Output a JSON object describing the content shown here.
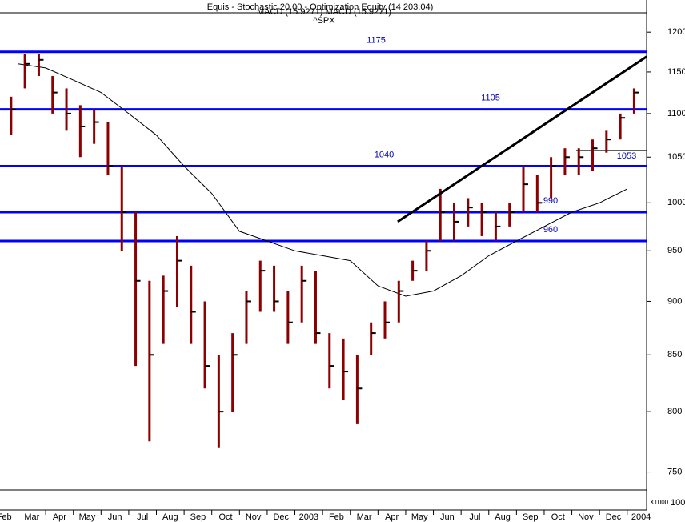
{
  "chart_data": {
    "type": "ohlc",
    "symbol": "^SPX",
    "header_lines": [
      "Equis - Stochastic 20.00 - Optimization Equity (14 203.04)",
      "MACD (15.9271) MACD (15.9271)"
    ],
    "x": [
      0.75,
      1.25,
      1.75,
      2.25,
      2.75,
      3.25,
      3.75,
      4.25,
      4.75,
      5.25,
      5.75,
      6.25,
      6.75,
      7.25,
      7.75,
      8.25,
      8.75,
      9.25,
      9.75,
      10.25,
      10.75,
      11.25,
      11.75,
      12.25,
      12.75,
      13.25,
      13.75,
      14.25,
      14.75,
      15.25,
      15.75,
      16.25,
      16.75,
      17.25,
      17.75,
      18.25,
      18.75,
      19.25,
      19.75,
      20.25,
      20.75,
      21.25,
      21.75,
      22.25,
      22.75,
      23.25
    ],
    "high": [
      1120,
      1172,
      1172,
      1145,
      1130,
      1110,
      1105,
      1090,
      1040,
      990,
      920,
      925,
      965,
      935,
      900,
      850,
      870,
      910,
      940,
      935,
      910,
      935,
      930,
      870,
      865,
      850,
      880,
      900,
      920,
      940,
      960,
      1015,
      1000,
      1005,
      1000,
      990,
      1000,
      1040,
      1030,
      1050,
      1060,
      1060,
      1070,
      1080,
      1100,
      1130
    ],
    "low": [
      1075,
      1130,
      1145,
      1100,
      1080,
      1050,
      1065,
      1030,
      950,
      840,
      775,
      860,
      895,
      860,
      820,
      770,
      800,
      860,
      890,
      890,
      860,
      880,
      860,
      820,
      810,
      790,
      850,
      865,
      880,
      920,
      930,
      960,
      960,
      975,
      965,
      960,
      975,
      990,
      990,
      1005,
      1030,
      1030,
      1035,
      1055,
      1070,
      1100
    ],
    "close": [
      1105,
      1160,
      1165,
      1125,
      1100,
      1085,
      1090,
      1040,
      990,
      920,
      850,
      910,
      940,
      890,
      840,
      800,
      850,
      900,
      930,
      900,
      880,
      920,
      870,
      840,
      835,
      820,
      870,
      880,
      910,
      930,
      950,
      990,
      980,
      995,
      990,
      975,
      990,
      1020,
      1000,
      1040,
      1050,
      1050,
      1060,
      1070,
      1095,
      1125
    ],
    "color": "#8b0000",
    "moving_average": {
      "color": "#000000",
      "x": [
        1,
        2,
        3,
        4,
        5,
        6,
        7,
        8,
        9,
        10,
        11,
        12,
        13,
        14,
        15,
        16,
        17,
        18,
        19,
        20,
        21,
        22,
        23
      ],
      "values": [
        1160,
        1155,
        1140,
        1125,
        1100,
        1075,
        1040,
        1010,
        970,
        960,
        950,
        945,
        940,
        915,
        905,
        910,
        925,
        945,
        960,
        975,
        990,
        1000,
        1015
      ]
    },
    "levels": [
      1175,
      1105,
      1040,
      990,
      960
    ],
    "level_color": "#0000ff",
    "marker_1053": 1053,
    "trendline": {
      "x": [
        14.71,
        23.7
      ],
      "values": [
        980,
        1169
      ],
      "color": "#000000"
    },
    "xlim": [
      0.35,
      23.7
    ],
    "xticks": [
      {
        "value": 0,
        "label": "Feb"
      },
      {
        "value": 1,
        "label": "Mar"
      },
      {
        "value": 2,
        "label": "Apr"
      },
      {
        "value": 3,
        "label": "May"
      },
      {
        "value": 4,
        "label": "Jun"
      },
      {
        "value": 5,
        "label": "Jul"
      },
      {
        "value": 6,
        "label": "Aug"
      },
      {
        "value": 7,
        "label": "Sep"
      },
      {
        "value": 8,
        "label": "Oct"
      },
      {
        "value": 9,
        "label": "Nov"
      },
      {
        "value": 10,
        "label": "Dec"
      },
      {
        "value": 11,
        "label": "2003"
      },
      {
        "value": 12,
        "label": "Feb"
      },
      {
        "value": 13,
        "label": "Mar"
      },
      {
        "value": 14,
        "label": "Apr"
      },
      {
        "value": 15,
        "label": "May"
      },
      {
        "value": 16,
        "label": "Jun"
      },
      {
        "value": 17,
        "label": "Jul"
      },
      {
        "value": 18,
        "label": "Aug"
      },
      {
        "value": 19,
        "label": "Sep"
      },
      {
        "value": 20,
        "label": "Oct"
      },
      {
        "value": 21,
        "label": "Nov"
      },
      {
        "value": 22,
        "label": "Dec"
      },
      {
        "value": 23,
        "label": "2004"
      }
    ],
    "ylim": [
      737,
      1223
    ],
    "yticks": [
      750,
      800,
      850,
      900,
      950,
      1000,
      1050,
      1100,
      1150,
      1200
    ],
    "log_scale": true,
    "volume_axis_label": "X1000",
    "volume_tick": 100
  }
}
